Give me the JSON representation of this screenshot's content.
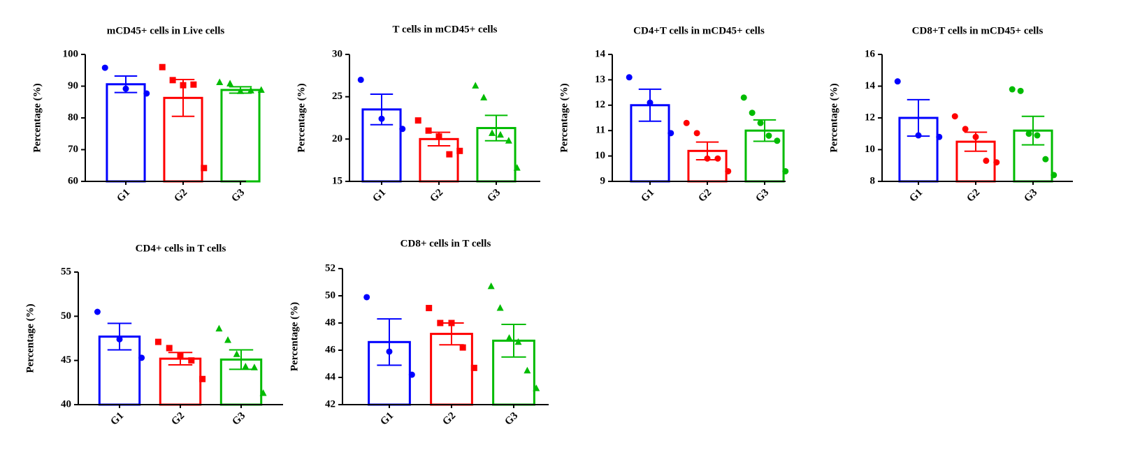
{
  "chart_data": [
    {
      "type": "bar",
      "title": "mCD45+ cells in Live cells",
      "ylabel": "Percentage (%)",
      "categories": [
        "G1",
        "G2",
        "G3"
      ],
      "colors": [
        "#0000ff",
        "#ff0000",
        "#00bb00"
      ],
      "markers": [
        "circle",
        "square",
        "triangle"
      ],
      "values": [
        90.6,
        86.3,
        88.8
      ],
      "errors": [
        2.6,
        5.8,
        1.0
      ],
      "points": [
        [
          95.8,
          89.2,
          87.7
        ],
        [
          96.0,
          91.9,
          90.3,
          90.5,
          64.2
        ],
        [
          91.2,
          90.8,
          88.4,
          88.6,
          88.8
        ]
      ],
      "ylim": [
        60,
        100
      ],
      "yticks": [
        60,
        70,
        80,
        90,
        100
      ]
    },
    {
      "type": "bar",
      "title": "T cells in mCD45+ cells",
      "ylabel": "Percentage (%)",
      "categories": [
        "G1",
        "G2",
        "G3"
      ],
      "colors": [
        "#0000ff",
        "#ff0000",
        "#00bb00"
      ],
      "markers": [
        "circle",
        "square",
        "triangle"
      ],
      "values": [
        23.5,
        20.0,
        21.3
      ],
      "errors": [
        1.8,
        0.8,
        1.5
      ],
      "points": [
        [
          27.0,
          22.4,
          21.2
        ],
        [
          22.2,
          21.0,
          20.3,
          18.2,
          18.6
        ],
        [
          26.3,
          24.9,
          20.7,
          20.5,
          19.8,
          16.6
        ]
      ],
      "ylim": [
        15,
        30
      ],
      "yticks": [
        15,
        20,
        25,
        30
      ]
    },
    {
      "type": "bar",
      "title": "CD4+T cells in mCD45+ cells",
      "ylabel": "Percentage (%)",
      "categories": [
        "G1",
        "G2",
        "G3"
      ],
      "colors": [
        "#0000ff",
        "#ff0000",
        "#00bb00"
      ],
      "markers": [
        "circle",
        "circle",
        "circle"
      ],
      "values": [
        12.0,
        10.2,
        11.0
      ],
      "errors": [
        0.63,
        0.35,
        0.42
      ],
      "points": [
        [
          13.1,
          12.1,
          10.9
        ],
        [
          11.3,
          10.9,
          9.9,
          9.9,
          9.4
        ],
        [
          12.3,
          11.7,
          11.3,
          10.8,
          10.6,
          9.4
        ]
      ],
      "ylim": [
        9,
        14
      ],
      "yticks": [
        9,
        10,
        11,
        12,
        13,
        14
      ]
    },
    {
      "type": "bar",
      "title": "CD8+T cells in mCD45+ cells",
      "ylabel": "Percentage (%)",
      "categories": [
        "G1",
        "G2",
        "G3"
      ],
      "colors": [
        "#0000ff",
        "#ff0000",
        "#00bb00"
      ],
      "markers": [
        "circle",
        "circle",
        "circle"
      ],
      "values": [
        12.0,
        10.5,
        11.2
      ],
      "errors": [
        1.15,
        0.6,
        0.9
      ],
      "points": [
        [
          14.3,
          10.9,
          10.8
        ],
        [
          12.1,
          11.3,
          10.8,
          9.3,
          9.2
        ],
        [
          13.8,
          13.7,
          11.0,
          10.9,
          9.4,
          8.4
        ]
      ],
      "ylim": [
        8,
        16
      ],
      "yticks": [
        8,
        10,
        12,
        14,
        16
      ]
    },
    {
      "type": "bar",
      "title": "CD4+  cells in T cells",
      "ylabel": "Percentage (%)",
      "categories": [
        "G1",
        "G2",
        "G3"
      ],
      "colors": [
        "#0000ff",
        "#ff0000",
        "#00bb00"
      ],
      "markers": [
        "circle",
        "square",
        "triangle"
      ],
      "values": [
        47.7,
        45.2,
        45.1
      ],
      "errors": [
        1.5,
        0.7,
        1.1
      ],
      "points": [
        [
          50.5,
          47.4,
          45.3
        ],
        [
          47.1,
          46.4,
          45.5,
          45.0,
          42.9
        ],
        [
          48.6,
          47.3,
          45.7,
          44.3,
          44.2,
          41.3
        ]
      ],
      "ylim": [
        40,
        55
      ],
      "yticks": [
        40,
        45,
        50,
        55
      ]
    },
    {
      "type": "bar",
      "title": "CD8+ cells in T cells",
      "ylabel": "Percentage (%)",
      "categories": [
        "G1",
        "G2",
        "G3"
      ],
      "colors": [
        "#0000ff",
        "#ff0000",
        "#00bb00"
      ],
      "markers": [
        "circle",
        "square",
        "triangle"
      ],
      "values": [
        46.6,
        47.2,
        46.7
      ],
      "errors": [
        1.7,
        0.8,
        1.2
      ],
      "points": [
        [
          49.9,
          45.9,
          44.2
        ],
        [
          49.1,
          48.0,
          48.0,
          46.2,
          44.7
        ],
        [
          50.7,
          49.1,
          46.9,
          46.6,
          44.5,
          43.2
        ]
      ],
      "ylim": [
        42,
        52
      ],
      "yticks": [
        42,
        44,
        46,
        48,
        50,
        52
      ]
    }
  ]
}
